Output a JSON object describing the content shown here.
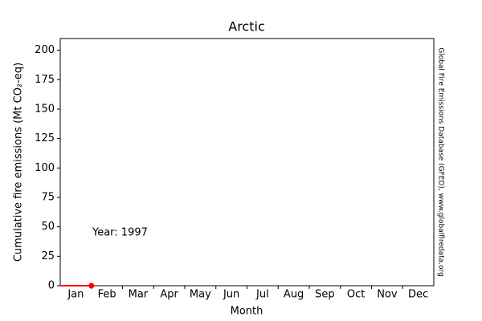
{
  "chart_data": {
    "type": "line",
    "title": "Arctic",
    "x_label": "Month",
    "y_label": "Cumulative fire emissions (Mt CO₂-eq)",
    "side_note": "Global Fire Emissions Database (GFED), www.globalfiredata.org",
    "annotation": "Year: 1997",
    "annotation_color": "#ff0000",
    "categories": [
      "Jan",
      "Feb",
      "Mar",
      "Apr",
      "May",
      "Jun",
      "Jul",
      "Aug",
      "Sep",
      "Oct",
      "Nov",
      "Dec"
    ],
    "xlim": [
      0,
      12
    ],
    "ylim": [
      0,
      210
    ],
    "yticks": [
      0,
      25,
      50,
      75,
      100,
      125,
      150,
      175,
      200
    ],
    "series": [
      {
        "color": "#ff0000",
        "x": [
          0,
          1
        ],
        "values": [
          0,
          0
        ]
      }
    ]
  }
}
